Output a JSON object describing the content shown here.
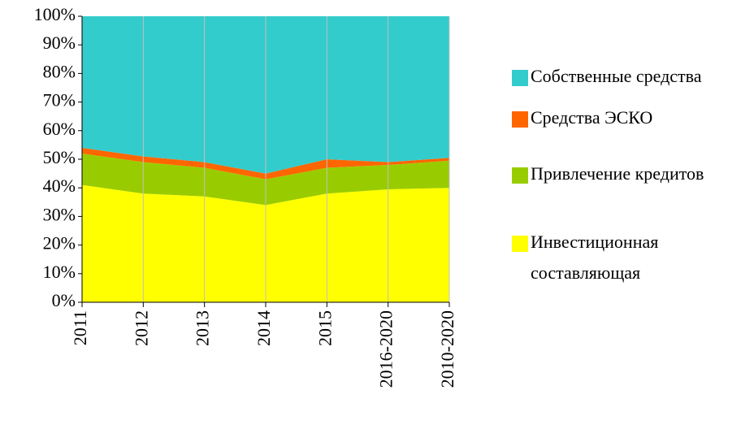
{
  "chart_data": {
    "type": "stacked_area",
    "categories": [
      "2011",
      "2012",
      "2013",
      "2014",
      "2015",
      "2016-2020",
      "2010-2020"
    ],
    "series": [
      {
        "name": "Инвестиционная составляющая",
        "color": "#ffff00",
        "values": [
          41,
          38,
          37,
          34,
          38,
          39.5,
          40
        ]
      },
      {
        "name": "Привлечение кредитов",
        "color": "#99cc00",
        "values": [
          11,
          11,
          10,
          9,
          9,
          8.5,
          9.5
        ]
      },
      {
        "name": "Средства ЭСКО",
        "color": "#ff6600",
        "values": [
          2,
          2,
          2,
          2,
          3,
          1,
          1
        ]
      },
      {
        "name": "Собственные средства",
        "color": "#33cccc",
        "values": [
          46,
          49,
          51,
          55,
          50,
          51,
          49.5
        ]
      }
    ],
    "ylim": [
      0,
      100
    ],
    "yticks": [
      {
        "value": 0,
        "label": "0%"
      },
      {
        "value": 10,
        "label": "10%"
      },
      {
        "value": 20,
        "label": "20%"
      },
      {
        "value": 30,
        "label": "30%"
      },
      {
        "value": 40,
        "label": "40%"
      },
      {
        "value": 50,
        "label": "50%"
      },
      {
        "value": 60,
        "label": "60%"
      },
      {
        "value": 70,
        "label": "70%"
      },
      {
        "value": 80,
        "label": "80%"
      },
      {
        "value": 90,
        "label": "90%"
      },
      {
        "value": 100,
        "label": "100%"
      }
    ],
    "grid": true,
    "legend": "right"
  }
}
